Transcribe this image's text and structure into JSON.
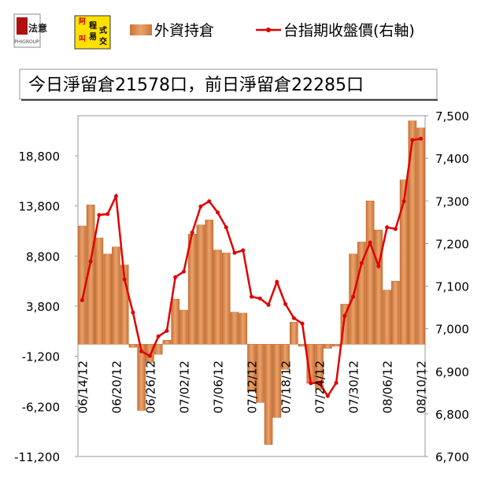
{
  "logos": {
    "brand": "法意",
    "brand_sub": "PHIGROUP",
    "program": [
      "程",
      "式",
      "交",
      "易"
    ],
    "badge": [
      "阿",
      "叫"
    ]
  },
  "chart_data": {
    "type": "bar",
    "annotation": "今日淨留倉21578口，前日淨留倉22285口",
    "categories": [
      "06/14/12",
      null,
      null,
      null,
      "06/20/12",
      null,
      null,
      null,
      "06/26/12",
      null,
      null,
      null,
      "07/02/12",
      null,
      null,
      null,
      "07/06/12",
      null,
      null,
      null,
      "07/12/12",
      null,
      null,
      null,
      "07/18/12",
      null,
      null,
      null,
      "07/24/12",
      null,
      null,
      null,
      "07/30/12",
      null,
      null,
      null,
      "08/06/12",
      null,
      null,
      null,
      "08/10/12"
    ],
    "series": [
      {
        "name": "外資持倉",
        "type": "bar",
        "color": "#d98a4a",
        "values": [
          11800,
          13900,
          10600,
          9000,
          9700,
          7900,
          -300,
          -6600,
          -1800,
          -1000,
          400,
          4500,
          3400,
          11000,
          11900,
          12400,
          9400,
          9100,
          3200,
          3100,
          -4700,
          -5800,
          -10000,
          -7300,
          -2500,
          2200,
          -200,
          -3900,
          -4500,
          -400,
          -200,
          4000,
          9000,
          10200,
          14300,
          11400,
          5400,
          6300,
          16400,
          22285,
          21578
        ]
      },
      {
        "name": "台指期收盤價(右軸)",
        "type": "line",
        "axis": "y2",
        "color": "#e00000",
        "values": [
          7067,
          7158,
          7267,
          7269,
          7311,
          7116,
          7038,
          6947,
          6936,
          6982,
          6995,
          7121,
          7134,
          7226,
          7287,
          7299,
          7273,
          7238,
          7178,
          7184,
          7075,
          7071,
          7056,
          7110,
          7058,
          7025,
          7012,
          6872,
          6873,
          6842,
          6873,
          7030,
          7075,
          7154,
          7202,
          7147,
          7238,
          7234,
          7299,
          7443,
          7446
        ]
      }
    ],
    "ylim": [
      -11200,
      22800
    ],
    "yticks": [
      {
        "value": -11200,
        "label": "-11,200"
      },
      {
        "value": -6200,
        "label": "-6,200"
      },
      {
        "value": -1200,
        "label": "-1,200"
      },
      {
        "value": 3800,
        "label": "3,800"
      },
      {
        "value": 8800,
        "label": "8,800"
      },
      {
        "value": 13800,
        "label": "13,800"
      },
      {
        "value": 18800,
        "label": "18,800"
      }
    ],
    "y2lim": [
      6700,
      7500
    ],
    "y2ticks": [
      {
        "value": 6700,
        "label": "6,700"
      },
      {
        "value": 6800,
        "label": "6,800"
      },
      {
        "value": 6900,
        "label": "6,900"
      },
      {
        "value": 7000,
        "label": "7,000"
      },
      {
        "value": 7100,
        "label": "7,100"
      },
      {
        "value": 7200,
        "label": "7,200"
      },
      {
        "value": 7300,
        "label": "7,300"
      },
      {
        "value": 7400,
        "label": "7,400"
      },
      {
        "value": 7500,
        "label": "7,500"
      }
    ],
    "grid": false
  }
}
